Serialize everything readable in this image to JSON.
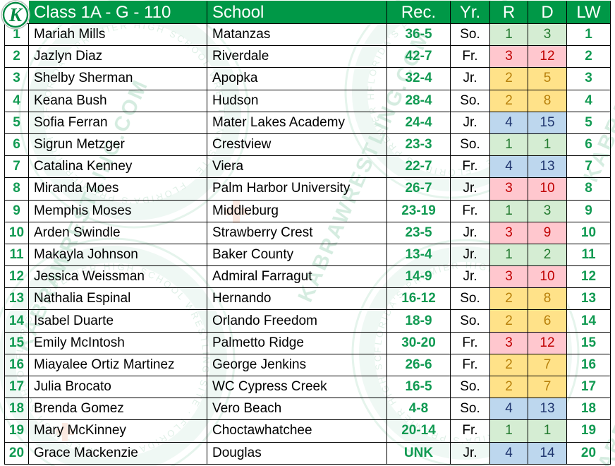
{
  "logo": {
    "letter": "K"
  },
  "header": {
    "title": "Class 1A - G - 110",
    "school": "School",
    "rec": "Rec.",
    "yr": "Yr.",
    "r": "R",
    "d": "D",
    "lw": "LW"
  },
  "colors": {
    "header_green": "#009847",
    "num_green": "#119A52",
    "logo_green": "#008A43",
    "border": "#000000",
    "region_colors": {
      "green": {
        "bg": "#D5EDD3",
        "text": "#237A2F"
      },
      "yellow": {
        "bg": "#FFE289",
        "text": "#B8800B"
      },
      "red": {
        "bg": "#FFC7CE",
        "text": "#C00000"
      },
      "blue": {
        "bg": "#BDD7EE",
        "text": "#20366F"
      }
    }
  },
  "watermark": {
    "diagonal_text": "KABRAWRESTLING.COM",
    "ring_text": "FLORIDA'S PREMIER HIGH SCHOOL WRESTLING SITE · FLORIDA'S PREMIER HIGH SCHOOL WRESTLING SITE ·"
  },
  "table": {
    "rows": [
      {
        "rank": "1",
        "name": "Mariah Mills",
        "school": "Matanzas",
        "rec": "36-5",
        "yr": "So.",
        "r": "1",
        "d": "3",
        "lw": "1",
        "region_color": "green"
      },
      {
        "rank": "2",
        "name": "Jazlyn Diaz",
        "school": "Riverdale",
        "rec": "42-7",
        "yr": "Fr.",
        "r": "3",
        "d": "12",
        "lw": "2",
        "region_color": "red"
      },
      {
        "rank": "3",
        "name": "Shelby Sherman",
        "school": "Apopka",
        "rec": "32-4",
        "yr": "Jr.",
        "r": "2",
        "d": "5",
        "lw": "3",
        "region_color": "yellow"
      },
      {
        "rank": "4",
        "name": "Keana Bush",
        "school": "Hudson",
        "rec": "28-4",
        "yr": "So.",
        "r": "2",
        "d": "8",
        "lw": "4",
        "region_color": "yellow"
      },
      {
        "rank": "5",
        "name": "Sofia Ferran",
        "school": "Mater Lakes Academy",
        "rec": "24-4",
        "yr": "Jr.",
        "r": "4",
        "d": "15",
        "lw": "5",
        "region_color": "blue"
      },
      {
        "rank": "6",
        "name": "Sigrun Metzger",
        "school": "Crestview",
        "rec": "23-3",
        "yr": "So.",
        "r": "1",
        "d": "1",
        "lw": "6",
        "region_color": "green"
      },
      {
        "rank": "7",
        "name": "Catalina Kenney",
        "school": "Viera",
        "rec": "22-7",
        "yr": "Fr.",
        "r": "4",
        "d": "13",
        "lw": "7",
        "region_color": "blue"
      },
      {
        "rank": "8",
        "name": "Miranda Moes",
        "school": "Palm Harbor University",
        "rec": "26-7",
        "yr": "Jr.",
        "r": "3",
        "d": "10",
        "lw": "8",
        "region_color": "red"
      },
      {
        "rank": "9",
        "name": "Memphis Moses",
        "school": "Middleburg",
        "rec": "23-19",
        "yr": "Fr.",
        "r": "1",
        "d": "3",
        "lw": "9",
        "region_color": "green"
      },
      {
        "rank": "10",
        "name": "Arden Swindle",
        "school": "Strawberry Crest",
        "rec": "23-5",
        "yr": "Jr.",
        "r": "3",
        "d": "9",
        "lw": "10",
        "region_color": "red"
      },
      {
        "rank": "11",
        "name": "Makayla Johnson",
        "school": "Baker County",
        "rec": "13-4",
        "yr": "Jr.",
        "r": "1",
        "d": "2",
        "lw": "11",
        "region_color": "green"
      },
      {
        "rank": "12",
        "name": "Jessica Weissman",
        "school": "Admiral Farragut",
        "rec": "14-9",
        "yr": "Jr.",
        "r": "3",
        "d": "10",
        "lw": "12",
        "region_color": "red"
      },
      {
        "rank": "13",
        "name": "Nathalia Espinal",
        "school": "Hernando",
        "rec": "16-12",
        "yr": "So.",
        "r": "2",
        "d": "8",
        "lw": "13",
        "region_color": "yellow"
      },
      {
        "rank": "14",
        "name": "Isabel Duarte",
        "school": "Orlando Freedom",
        "rec": "18-9",
        "yr": "So.",
        "r": "2",
        "d": "6",
        "lw": "14",
        "region_color": "yellow"
      },
      {
        "rank": "15",
        "name": "Emily McIntosh",
        "school": "Palmetto Ridge",
        "rec": "30-20",
        "yr": "Fr.",
        "r": "3",
        "d": "12",
        "lw": "15",
        "region_color": "red"
      },
      {
        "rank": "16",
        "name": "Miayalee Ortiz Martinez",
        "school": "George Jenkins",
        "rec": "26-6",
        "yr": "Fr.",
        "r": "2",
        "d": "7",
        "lw": "16",
        "region_color": "yellow"
      },
      {
        "rank": "17",
        "name": "Julia Brocato",
        "school": "WC Cypress Creek",
        "rec": "16-5",
        "yr": "So.",
        "r": "2",
        "d": "7",
        "lw": "17",
        "region_color": "yellow"
      },
      {
        "rank": "18",
        "name": "Brenda Gomez",
        "school": "Vero Beach",
        "rec": "4-8",
        "yr": "So.",
        "r": "4",
        "d": "13",
        "lw": "18",
        "region_color": "blue"
      },
      {
        "rank": "19",
        "name": "Mary McKinney",
        "school": "Choctawhatchee",
        "rec": "20-14",
        "yr": "Fr.",
        "r": "1",
        "d": "1",
        "lw": "19",
        "region_color": "green"
      },
      {
        "rank": "20",
        "name": "Grace Mackenzie",
        "school": "Douglas",
        "rec": "UNK",
        "yr": "Jr.",
        "r": "4",
        "d": "14",
        "lw": "20",
        "region_color": "blue"
      }
    ]
  }
}
